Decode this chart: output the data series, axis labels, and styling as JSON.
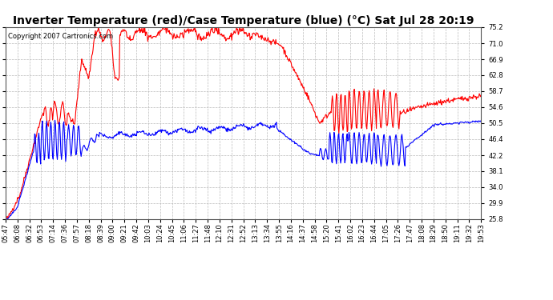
{
  "title": "Inverter Temperature (red)/Case Temperature (blue) (°C) Sat Jul 28 20:19",
  "copyright": "Copyright 2007 Cartronics.com",
  "background_color": "#ffffff",
  "plot_bg_color": "#ffffff",
  "grid_color": "#bbbbbb",
  "red_color": "#ff0000",
  "blue_color": "#0000ff",
  "ylim": [
    25.8,
    75.2
  ],
  "yticks": [
    25.8,
    29.9,
    34.0,
    38.1,
    42.2,
    46.4,
    50.5,
    54.6,
    58.7,
    62.8,
    66.9,
    71.0,
    75.2
  ],
  "xtick_labels": [
    "05:47",
    "06:08",
    "06:32",
    "06:53",
    "07:14",
    "07:36",
    "07:57",
    "08:18",
    "08:39",
    "09:00",
    "09:21",
    "09:42",
    "10:03",
    "10:24",
    "10:45",
    "11:06",
    "11:27",
    "11:48",
    "12:10",
    "12:31",
    "12:52",
    "13:13",
    "13:34",
    "13:55",
    "14:16",
    "14:37",
    "14:58",
    "15:20",
    "15:41",
    "16:02",
    "16:23",
    "16:44",
    "17:05",
    "17:26",
    "17:47",
    "18:08",
    "18:29",
    "18:50",
    "19:11",
    "19:32",
    "19:53"
  ],
  "line_width": 0.8,
  "title_fontsize": 10,
  "tick_fontsize": 6,
  "copyright_fontsize": 6
}
